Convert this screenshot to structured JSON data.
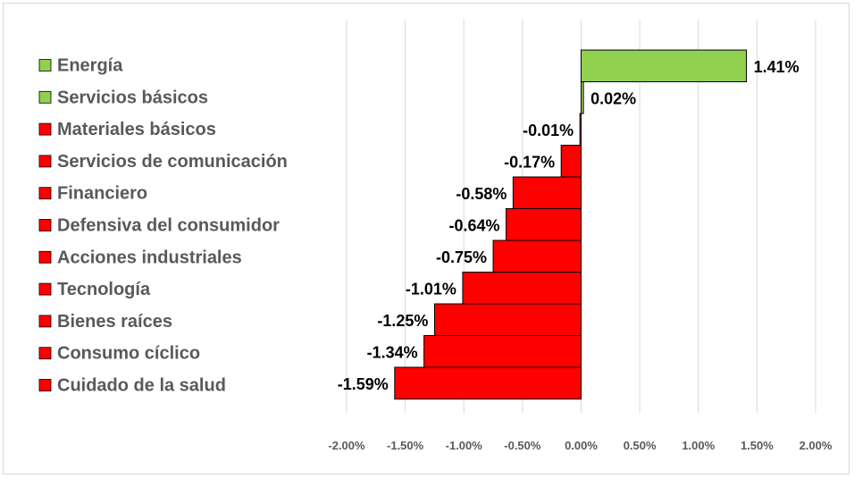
{
  "chart_data": {
    "type": "bar",
    "orientation": "horizontal",
    "title": "",
    "xlabel": "",
    "ylabel": "",
    "xlim": [
      -2.0,
      2.0
    ],
    "x_ticks": [
      "-2.00%",
      "-1.50%",
      "-1.00%",
      "-0.50%",
      "0.00%",
      "0.50%",
      "1.00%",
      "1.50%",
      "2.00%"
    ],
    "x_tick_values": [
      -2.0,
      -1.5,
      -1.0,
      -0.5,
      0,
      0.5,
      1.0,
      1.5,
      2.0
    ],
    "grid": "vertical",
    "legend_position": "left",
    "categories": [
      "Energía",
      "Servicios básicos",
      "Materiales básicos",
      "Servicios de comunicación",
      "Financiero",
      "Defensiva del consumidor",
      "Acciones industriales",
      "Tecnología",
      "Bienes raíces",
      "Consumo cíclico",
      "Cuidado de la salud"
    ],
    "values": [
      1.41,
      0.02,
      -0.01,
      -0.17,
      -0.58,
      -0.64,
      -0.75,
      -1.01,
      -1.25,
      -1.34,
      -1.59
    ],
    "data_labels": [
      "1.41%",
      "0.02%",
      "-0.01%",
      "-0.17%",
      "-0.58%",
      "-0.64%",
      "-0.75%",
      "-1.01%",
      "-1.25%",
      "-1.34%",
      "-1.59%"
    ],
    "colors": {
      "positive": "#92D050",
      "negative": "#FF0000"
    }
  }
}
